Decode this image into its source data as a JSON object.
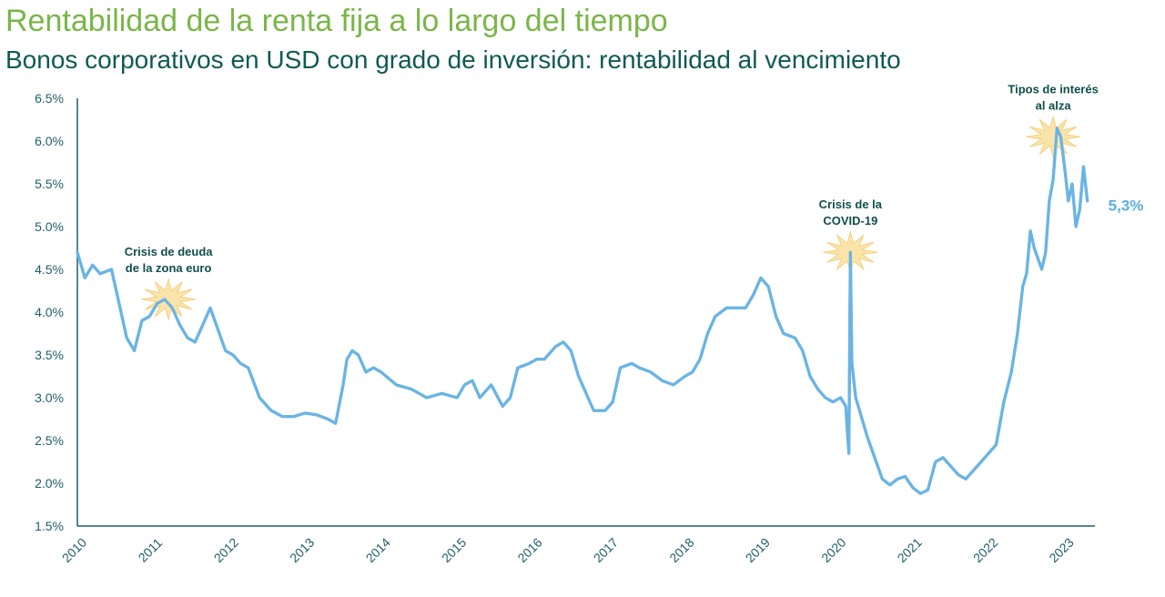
{
  "header": {
    "title": "Rentabilidad de la renta fija a lo largo del tiempo",
    "subtitle": "Bonos corporativos en USD con grado de inversión: rentabilidad al vencimiento"
  },
  "chart_data": {
    "type": "line",
    "title": "Rentabilidad de la renta fija a lo largo del tiempo",
    "subtitle": "Bonos corporativos en USD con grado de inversión: rentabilidad al vencimiento",
    "xlabel": "",
    "ylabel": "",
    "xlim": [
      2010,
      2023.4
    ],
    "ylim": [
      1.5,
      6.5
    ],
    "x_ticks": [
      2010,
      2011,
      2012,
      2013,
      2014,
      2015,
      2016,
      2017,
      2018,
      2019,
      2020,
      2021,
      2022,
      2023
    ],
    "x_tick_labels": [
      "2010",
      "2011",
      "2012",
      "2013",
      "2014",
      "2015",
      "2016",
      "2017",
      "2018",
      "2019",
      "2020",
      "2021",
      "2022",
      "2023"
    ],
    "y_ticks": [
      1.5,
      2.0,
      2.5,
      3.0,
      3.5,
      4.0,
      4.5,
      5.0,
      5.5,
      6.0,
      6.5
    ],
    "y_tick_labels": [
      "1.5%",
      "2.0%",
      "2.5%",
      "3.0%",
      "3.5%",
      "4.0%",
      "4.5%",
      "5.0%",
      "5.5%",
      "6.0%",
      "6.5%"
    ],
    "grid": false,
    "legend": "none",
    "line_color": "#6ab4e4",
    "series": [
      {
        "x": [
          2010.0,
          2010.1,
          2010.2,
          2010.3,
          2010.45,
          2010.55,
          2010.65,
          2010.75,
          2010.85,
          2010.95,
          2011.05,
          2011.15,
          2011.25,
          2011.35,
          2011.45,
          2011.55,
          2011.65,
          2011.75,
          2011.85,
          2011.95,
          2012.05,
          2012.15,
          2012.25,
          2012.4,
          2012.55,
          2012.7,
          2012.85,
          2013.0,
          2013.15,
          2013.3,
          2013.4,
          2013.5,
          2013.55,
          2013.62,
          2013.7,
          2013.8,
          2013.9,
          2014.0,
          2014.2,
          2014.4,
          2014.6,
          2014.8,
          2015.0,
          2015.1,
          2015.2,
          2015.3,
          2015.45,
          2015.6,
          2015.7,
          2015.8,
          2015.95,
          2016.05,
          2016.15,
          2016.3,
          2016.4,
          2016.5,
          2016.6,
          2016.8,
          2016.95,
          2017.05,
          2017.15,
          2017.3,
          2017.4,
          2017.55,
          2017.7,
          2017.85,
          2018.0,
          2018.1,
          2018.2,
          2018.3,
          2018.4,
          2018.55,
          2018.7,
          2018.8,
          2018.9,
          2019.0,
          2019.1,
          2019.2,
          2019.3,
          2019.45,
          2019.55,
          2019.65,
          2019.75,
          2019.85,
          2019.95,
          2020.05,
          2020.12,
          2020.14,
          2020.16,
          2020.18,
          2020.2,
          2020.25,
          2020.3,
          2020.4,
          2020.5,
          2020.6,
          2020.7,
          2020.8,
          2020.9,
          2021.0,
          2021.1,
          2021.2,
          2021.3,
          2021.4,
          2021.5,
          2021.6,
          2021.7,
          2021.8,
          2021.9,
          2022.0,
          2022.1,
          2022.2,
          2022.3,
          2022.38,
          2022.45,
          2022.5,
          2022.55,
          2022.6,
          2022.7,
          2022.75,
          2022.8,
          2022.85,
          2022.9,
          2022.95,
          2023.0,
          2023.05,
          2023.1,
          2023.15,
          2023.2,
          2023.25,
          2023.3
        ],
        "values": [
          4.7,
          4.4,
          4.55,
          4.45,
          4.5,
          4.1,
          3.7,
          3.55,
          3.9,
          3.95,
          4.1,
          4.15,
          4.05,
          3.85,
          3.7,
          3.65,
          3.85,
          4.05,
          3.8,
          3.55,
          3.5,
          3.4,
          3.35,
          3.0,
          2.85,
          2.78,
          2.78,
          2.82,
          2.8,
          2.75,
          2.7,
          3.15,
          3.45,
          3.55,
          3.5,
          3.3,
          3.35,
          3.3,
          3.15,
          3.1,
          3.0,
          3.05,
          3.0,
          3.15,
          3.2,
          3.0,
          3.15,
          2.9,
          3.0,
          3.35,
          3.4,
          3.45,
          3.45,
          3.6,
          3.65,
          3.55,
          3.25,
          2.85,
          2.85,
          2.95,
          3.35,
          3.4,
          3.35,
          3.3,
          3.2,
          3.15,
          3.25,
          3.3,
          3.45,
          3.75,
          3.95,
          4.05,
          4.05,
          4.05,
          4.2,
          4.4,
          4.3,
          3.95,
          3.75,
          3.7,
          3.55,
          3.25,
          3.1,
          3.0,
          2.95,
          3.0,
          2.9,
          2.6,
          2.35,
          4.7,
          3.4,
          3.0,
          2.85,
          2.55,
          2.3,
          2.05,
          1.98,
          2.05,
          2.08,
          1.95,
          1.88,
          1.92,
          2.25,
          2.3,
          2.2,
          2.1,
          2.05,
          2.15,
          2.25,
          2.35,
          2.45,
          2.95,
          3.3,
          3.75,
          4.3,
          4.45,
          4.95,
          4.75,
          4.5,
          4.7,
          5.3,
          5.55,
          6.15,
          6.05,
          5.7,
          5.3,
          5.5,
          5.0,
          5.2,
          5.7,
          5.3
        ]
      }
    ],
    "annotations": [
      {
        "lines": [
          "Crisis de deuda",
          "de la zona euro"
        ],
        "x": 2011.2,
        "y": 4.15
      },
      {
        "lines": [
          "Crisis de la",
          "COVID-19"
        ],
        "x": 2020.18,
        "y": 4.7
      },
      {
        "lines": [
          "Tipos de interés",
          "al alza"
        ],
        "x": 2022.85,
        "y": 6.05
      }
    ],
    "last_value_label": "5,3%"
  }
}
